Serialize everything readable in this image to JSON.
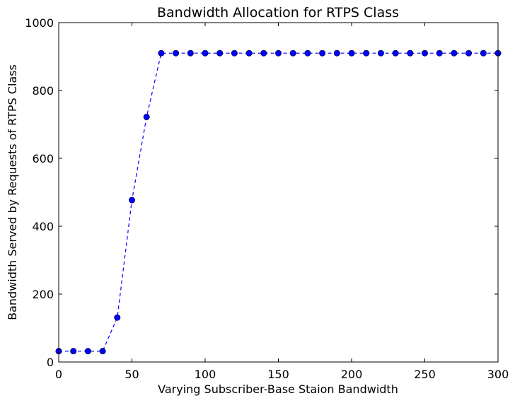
{
  "chart_data": {
    "type": "line",
    "title": "Bandwidth Allocation for RTPS Class",
    "xlabel": "Varying Subscriber-Base Staion Bandwidth",
    "ylabel": "Bandwidth Served by Requests of RTPS Class",
    "xlim": [
      0,
      300
    ],
    "ylim": [
      0,
      1000
    ],
    "xticks": [
      0,
      50,
      100,
      150,
      200,
      250,
      300
    ],
    "yticks": [
      0,
      200,
      400,
      600,
      800,
      1000
    ],
    "grid": false,
    "line_style": "dashed",
    "marker": "circle",
    "series": [
      {
        "color": "#0000ff",
        "x": [
          0,
          10,
          20,
          30,
          40,
          50,
          60,
          70,
          80,
          90,
          100,
          110,
          120,
          130,
          140,
          150,
          160,
          170,
          180,
          190,
          200,
          210,
          220,
          230,
          240,
          250,
          260,
          270,
          280,
          290,
          300
        ],
        "y": [
          32,
          32,
          32,
          32,
          131,
          477,
          722,
          910,
          910,
          910,
          910,
          910,
          910,
          910,
          910,
          910,
          910,
          910,
          910,
          910,
          910,
          910,
          910,
          910,
          910,
          910,
          910,
          910,
          910,
          910,
          910
        ]
      }
    ]
  }
}
